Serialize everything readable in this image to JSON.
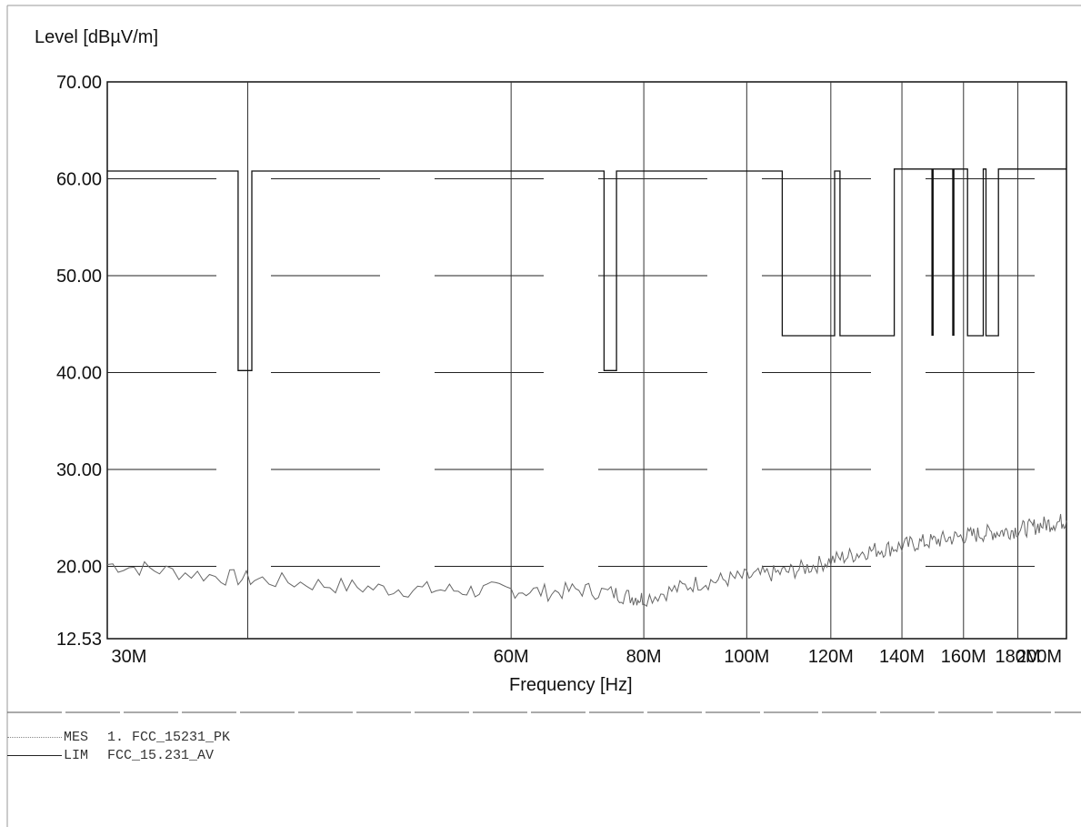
{
  "chart_data": {
    "type": "line",
    "ylabel": "Level [dBµV/m]",
    "xlabel": "Frequency [Hz]",
    "ylim": [
      12.53,
      70
    ],
    "xlim": [
      25,
      200
    ],
    "x_scale": "log",
    "y_ticks": [
      "70.00",
      "60.00",
      "50.00",
      "40.00",
      "30.00",
      "20.00",
      "12.53"
    ],
    "y_tick_values": [
      70,
      60,
      50,
      40,
      30,
      20,
      12.53
    ],
    "x_ticks": [
      "30M",
      "60M",
      "80M",
      "100M",
      "120M",
      "140M",
      "160M",
      "180M",
      "200M"
    ],
    "x_tick_values": [
      30,
      60,
      80,
      100,
      120,
      140,
      160,
      180,
      200
    ],
    "grid": true,
    "series": [
      {
        "name": "FCC_15.231_AV",
        "role": "LIM",
        "style": "solid",
        "color": "#111111",
        "points": [
          [
            25,
            60.8
          ],
          [
            33.2,
            60.8
          ],
          [
            33.2,
            40.2
          ],
          [
            34.2,
            40.2
          ],
          [
            34.2,
            60.8
          ],
          [
            73.4,
            60.8
          ],
          [
            73.4,
            40.2
          ],
          [
            75.4,
            40.2
          ],
          [
            75.4,
            60.8
          ],
          [
            108,
            60.8
          ],
          [
            108,
            43.8
          ],
          [
            121,
            43.8
          ],
          [
            121,
            60.8
          ],
          [
            122.4,
            60.8
          ],
          [
            122.4,
            43.8
          ],
          [
            137.7,
            43.8
          ],
          [
            137.7,
            61
          ],
          [
            161.4,
            61
          ],
          [
            161.4,
            43.8
          ],
          [
            167,
            43.8
          ],
          [
            167,
            61
          ],
          [
            168,
            61
          ],
          [
            168,
            43.8
          ],
          [
            172.6,
            43.8
          ],
          [
            172.6,
            61
          ],
          [
            200,
            61
          ]
        ],
        "spikes": [
          {
            "x": 149.6,
            "y_low": 43.8,
            "y_high": 61
          },
          {
            "x": 156.5,
            "y_low": 43.8,
            "y_high": 61
          }
        ]
      },
      {
        "name": "1. FCC_15231_PK",
        "role": "MES",
        "style": "dotted",
        "color": "#666666",
        "points": [
          [
            25,
            20.2
          ],
          [
            28,
            19.6
          ],
          [
            32,
            18.9
          ],
          [
            35,
            18.6
          ],
          [
            40,
            18.1
          ],
          [
            45,
            17.7
          ],
          [
            50,
            17.6
          ],
          [
            55,
            17.5
          ],
          [
            60,
            17.6
          ],
          [
            65,
            17.3
          ],
          [
            70,
            17.6
          ],
          [
            75,
            17.2
          ],
          [
            78,
            16.8
          ],
          [
            80,
            16.7
          ],
          [
            85,
            17.5
          ],
          [
            90,
            18.3
          ],
          [
            95,
            18.6
          ],
          [
            100,
            18.9
          ],
          [
            105,
            19.2
          ],
          [
            110,
            19.5
          ],
          [
            115,
            20.0
          ],
          [
            120,
            20.6
          ],
          [
            125,
            21.1
          ],
          [
            130,
            21.6
          ],
          [
            135,
            21.8
          ],
          [
            140,
            22.1
          ],
          [
            145,
            22.4
          ],
          [
            150,
            22.6
          ],
          [
            155,
            22.9
          ],
          [
            160,
            23.1
          ],
          [
            165,
            23.3
          ],
          [
            170,
            23.5
          ],
          [
            175,
            23.6
          ],
          [
            180,
            23.8
          ],
          [
            185,
            24.0
          ],
          [
            190,
            24.3
          ],
          [
            195,
            24.5
          ],
          [
            200,
            24.7
          ]
        ]
      }
    ],
    "legend": [
      {
        "tag": "MES",
        "text": "1. FCC_15231_PK",
        "style": "dotted"
      },
      {
        "tag": "LIM",
        "text": "FCC_15.231_AV",
        "style": "solid"
      }
    ]
  }
}
